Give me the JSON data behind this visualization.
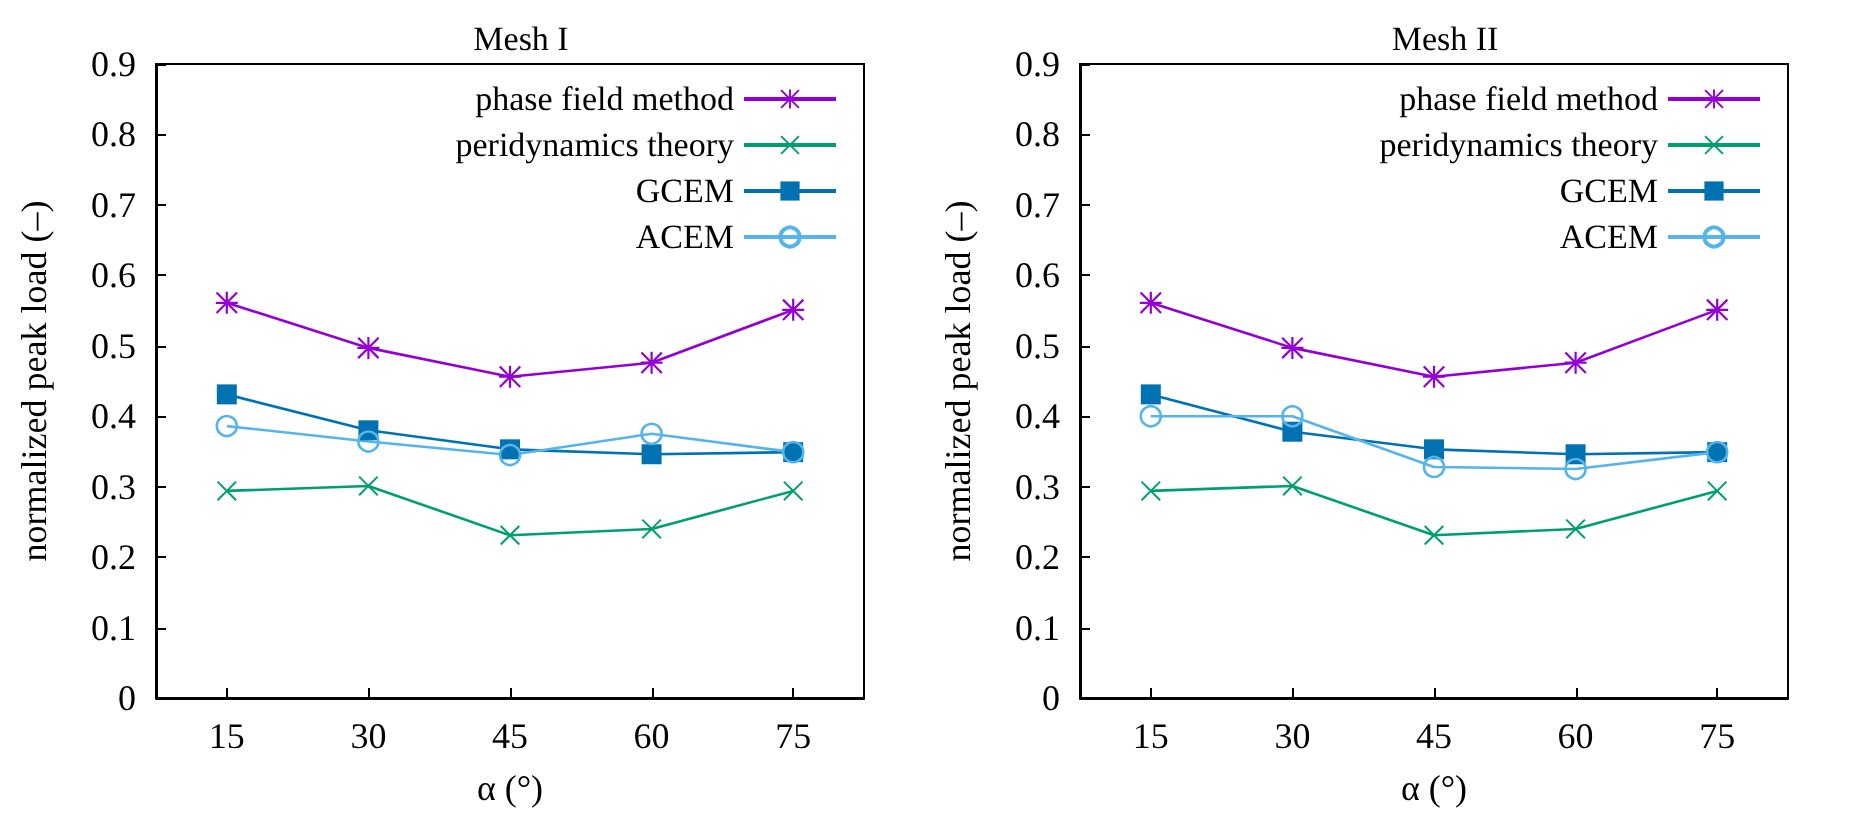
{
  "chart_data": [
    {
      "type": "line",
      "title": "Mesh I",
      "xlabel": "α (°)",
      "ylabel": "normalized peak load (–)",
      "categories": [
        "15",
        "30",
        "45",
        "60",
        "75"
      ],
      "ylim": [
        0,
        0.9
      ],
      "yticks": [
        0,
        0.1,
        0.2,
        0.3,
        0.4,
        0.5,
        0.6,
        0.7,
        0.8,
        0.9
      ],
      "legend": "top right",
      "grid": false,
      "series": [
        {
          "name": "phase field method",
          "color": "#9400d3",
          "marker": "star",
          "values": [
            0.561,
            0.497,
            0.456,
            0.476,
            0.551
          ]
        },
        {
          "name": "peridynamics theory",
          "color": "#009e73",
          "marker": "cross",
          "values": [
            0.294,
            0.301,
            0.231,
            0.24,
            0.294
          ]
        },
        {
          "name": "GCEM",
          "color": "#0072b2",
          "marker": "square",
          "values": [
            0.431,
            0.38,
            0.353,
            0.346,
            0.349
          ]
        },
        {
          "name": "ACEM",
          "color": "#56b4e9",
          "marker": "circle",
          "values": [
            0.386,
            0.364,
            0.345,
            0.375,
            0.349
          ]
        }
      ]
    },
    {
      "type": "line",
      "title": "Mesh II",
      "xlabel": "α (°)",
      "ylabel": "normalized peak load (–)",
      "categories": [
        "15",
        "30",
        "45",
        "60",
        "75"
      ],
      "ylim": [
        0,
        0.9
      ],
      "yticks": [
        0,
        0.1,
        0.2,
        0.3,
        0.4,
        0.5,
        0.6,
        0.7,
        0.8,
        0.9
      ],
      "legend": "top right",
      "grid": false,
      "series": [
        {
          "name": "phase field method",
          "color": "#9400d3",
          "marker": "star",
          "values": [
            0.561,
            0.497,
            0.456,
            0.476,
            0.551
          ]
        },
        {
          "name": "peridynamics theory",
          "color": "#009e73",
          "marker": "cross",
          "values": [
            0.294,
            0.301,
            0.231,
            0.24,
            0.294
          ]
        },
        {
          "name": "GCEM",
          "color": "#0072b2",
          "marker": "square",
          "values": [
            0.431,
            0.378,
            0.353,
            0.346,
            0.349
          ]
        },
        {
          "name": "ACEM",
          "color": "#56b4e9",
          "marker": "circle",
          "values": [
            0.4,
            0.4,
            0.328,
            0.325,
            0.349
          ]
        }
      ]
    }
  ]
}
